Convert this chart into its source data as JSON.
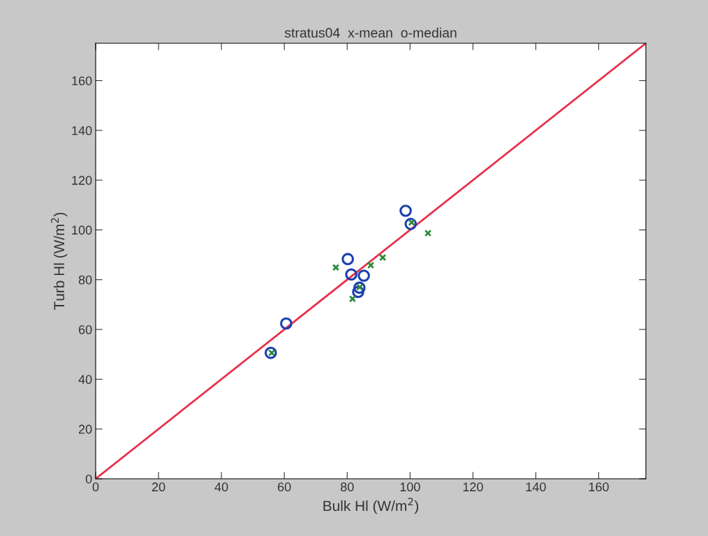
{
  "chart_data": {
    "type": "scatter",
    "title": "stratus04  x-mean  o-median",
    "xlabel": "Bulk Hl (W/m$^{2}$)",
    "ylabel": "Turb Hl (W/m$^{2}$)",
    "xlim": [
      0,
      175
    ],
    "ylim": [
      0,
      175
    ],
    "xticks": [
      0,
      20,
      40,
      60,
      80,
      100,
      120,
      140,
      160
    ],
    "yticks": [
      0,
      20,
      40,
      60,
      80,
      100,
      120,
      140,
      160
    ],
    "grid": false,
    "series": [
      {
        "marker": "cross",
        "color": "#2a8a3a",
        "x": [
          76.4,
          81.7,
          87.5,
          91.3,
          105.7,
          56,
          84,
          100.5
        ],
        "values": [
          84.9,
          72.3,
          85.8,
          88.9,
          98.7,
          50.6,
          77,
          103
        ]
      },
      {
        "marker": "circle",
        "color": "#1a3fb0",
        "x": [
          55.7,
          60.6,
          80.2,
          81.3,
          85.3,
          83.9,
          83.5,
          98.6,
          100.2
        ],
        "values": [
          50.6,
          62.4,
          88.3,
          82.1,
          81.6,
          76.8,
          75.1,
          107.7,
          102.4
        ]
      },
      {
        "type": "line",
        "color": "#e8304a",
        "x": [
          0,
          175
        ],
        "values": [
          0,
          175
        ]
      }
    ]
  }
}
